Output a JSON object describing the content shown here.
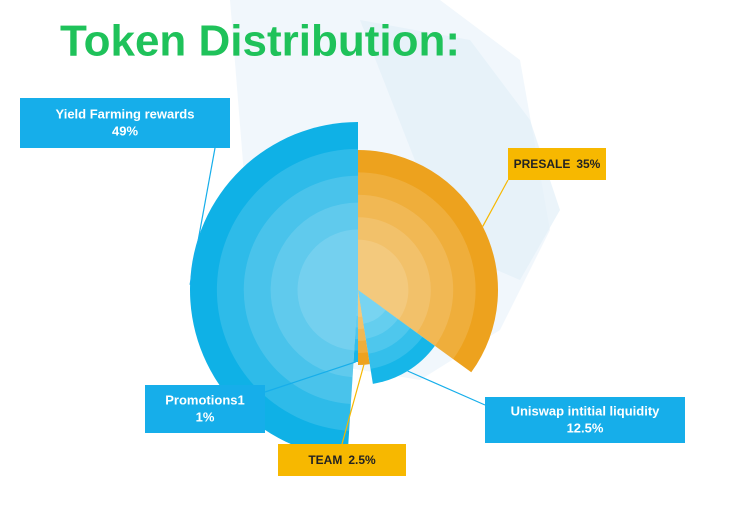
{
  "chart_data": {
    "type": "pie",
    "title": "Token Distribution:",
    "categories": [
      "PRESALE",
      "Uniswap intitial liquidity",
      "TEAM",
      "Promotions1",
      "Yield Farming rewards"
    ],
    "values": [
      35,
      12.5,
      2.5,
      1,
      49
    ],
    "value_labels": [
      "35%",
      "12.5%",
      "2.5%",
      "1%",
      "49%"
    ],
    "colors": [
      "#eda21e",
      "#16b6e8",
      "#eda21e",
      "#16b6e8",
      "#0fb1e6"
    ]
  }
}
